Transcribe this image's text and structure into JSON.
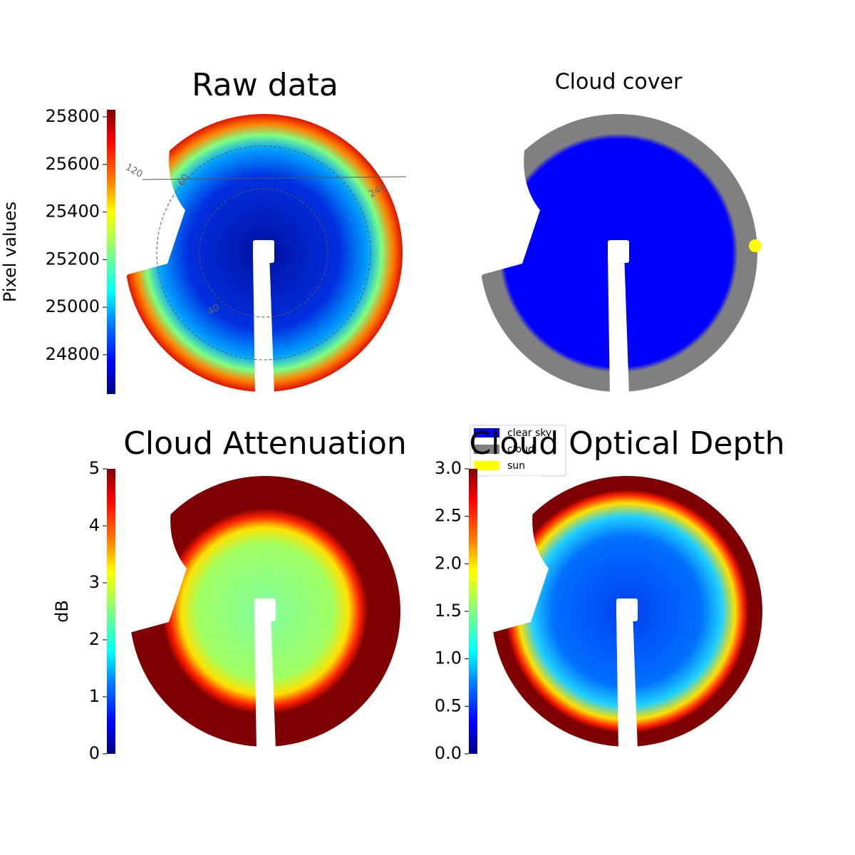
{
  "chart_data": [
    {
      "type": "image",
      "title": "Raw data",
      "colorbar_label": "Pixel values",
      "cmap": "jet",
      "ylim": [
        24635,
        25830
      ],
      "yticks": [
        24800,
        25000,
        25200,
        25400,
        25600,
        25800
      ],
      "annotations": [
        "120",
        "60",
        "240",
        "40"
      ]
    },
    {
      "type": "image",
      "title": "Cloud cover",
      "series": [
        {
          "name": "clear sky",
          "color": "#0000ff"
        },
        {
          "name": "cloud",
          "color": "#808080"
        },
        {
          "name": "sun",
          "color": "#ffff00"
        }
      ]
    },
    {
      "type": "image",
      "title": "Cloud Attenuation",
      "colorbar_label": "dB",
      "cmap": "jet",
      "ylim": [
        0,
        5
      ],
      "yticks": [
        0,
        1,
        2,
        3,
        4,
        5
      ]
    },
    {
      "type": "image",
      "title": "Cloud Optical Depth",
      "cmap": "jet",
      "ylim": [
        0,
        3
      ],
      "yticks": [
        {
          "value": 0,
          "label": "0.0"
        },
        {
          "value": 0.5,
          "label": "0.5"
        },
        {
          "value": 1,
          "label": "1.0"
        },
        {
          "value": 1.5,
          "label": "1.5"
        },
        {
          "value": 2,
          "label": "2.0"
        },
        {
          "value": 2.5,
          "label": "2.5"
        },
        {
          "value": 3,
          "label": "3.0"
        }
      ]
    }
  ]
}
